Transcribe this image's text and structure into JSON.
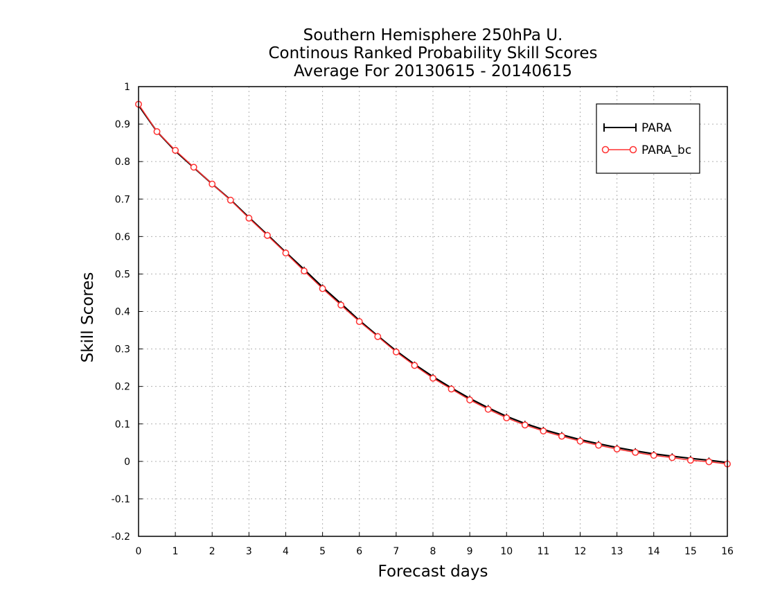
{
  "chart_data": {
    "type": "line",
    "title_lines": [
      "Southern Hemisphere 250hPa U.",
      "Continous Ranked Probability Skill Scores",
      "Average For 20130615 - 20140615"
    ],
    "xlabel": "Forecast days",
    "ylabel": "Skill Scores",
    "xlim": [
      0,
      16
    ],
    "ylim": [
      -0.2,
      1
    ],
    "x_ticks": [
      "0",
      "1",
      "2",
      "3",
      "4",
      "5",
      "6",
      "7",
      "8",
      "9",
      "10",
      "11",
      "12",
      "13",
      "14",
      "15",
      "16"
    ],
    "y_ticks": [
      "-0.2",
      "-0.1",
      "0",
      "0.1",
      "0.2",
      "0.3",
      "0.4",
      "0.5",
      "0.6",
      "0.7",
      "0.8",
      "0.9",
      "1"
    ],
    "grid": true,
    "legend_position": "top-right",
    "x": [
      0,
      0.5,
      1,
      1.5,
      2,
      2.5,
      3,
      3.5,
      4,
      4.5,
      5,
      5.5,
      6,
      6.5,
      7,
      7.5,
      8,
      8.5,
      9,
      9.5,
      10,
      10.5,
      11,
      11.5,
      12,
      12.5,
      13,
      13.5,
      14,
      14.5,
      15,
      15.5,
      16
    ],
    "series": [
      {
        "name": "PARA",
        "color": "#000000",
        "marker": "plus",
        "values": [
          0.95,
          0.88,
          0.828,
          0.784,
          0.74,
          0.698,
          0.651,
          0.605,
          0.558,
          0.512,
          0.465,
          0.421,
          0.376,
          0.335,
          0.295,
          0.259,
          0.226,
          0.196,
          0.168,
          0.143,
          0.12,
          0.101,
          0.085,
          0.071,
          0.058,
          0.047,
          0.037,
          0.028,
          0.02,
          0.014,
          0.008,
          0.003,
          -0.003
        ]
      },
      {
        "name": "PARA_bc",
        "color": "#ff3030",
        "marker": "circle",
        "values": [
          0.953,
          0.88,
          0.83,
          0.785,
          0.74,
          0.697,
          0.649,
          0.603,
          0.556,
          0.508,
          0.461,
          0.417,
          0.373,
          0.333,
          0.292,
          0.256,
          0.222,
          0.193,
          0.164,
          0.139,
          0.116,
          0.097,
          0.081,
          0.067,
          0.054,
          0.043,
          0.033,
          0.024,
          0.016,
          0.01,
          0.003,
          -0.001,
          -0.007
        ]
      }
    ]
  }
}
